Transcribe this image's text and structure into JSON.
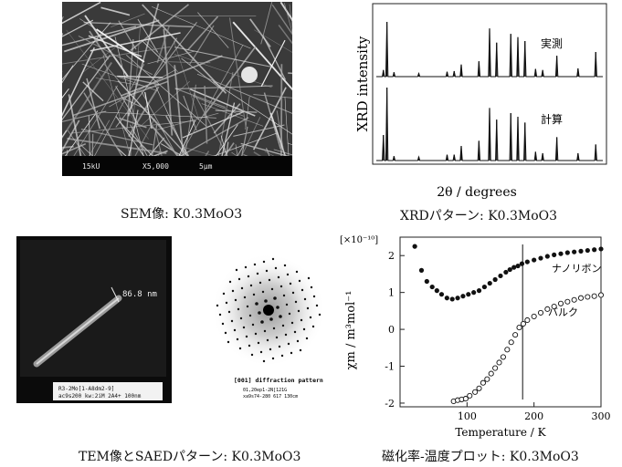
{
  "sem": {
    "bar_kv": "15kU",
    "bar_mag": "X5,000",
    "bar_scale": "5μm",
    "caption": "SEM像: K0.3MoO3"
  },
  "xrd": {
    "ylabel": "XRD intensity",
    "xlabel": "2θ / degrees",
    "label_measured": "実測",
    "label_calculated": "計算",
    "caption": "XRDパターン: K0.3MoO3"
  },
  "tem": {
    "width_label": "86.8 nm",
    "footer_line1": "R3-2Mo[1-A8dm2-9]",
    "footer_line2": "ac9s200 kw:2iM  2A4+ 100nm",
    "caption": "TEM像とSAEDパターン: K0.3MoO3"
  },
  "saed": {
    "title": "[001] diffraction pattern",
    "footer_line1": "01,20ep1-2N[121G",
    "footer_line2": "xa9s74-280 617 130cm"
  },
  "chi": {
    "unit_label": "[×10⁻¹⁰]",
    "ylabel": "χm / m³mol⁻¹",
    "xlabel": "Temperature / K",
    "label_nanoribbon": "ナノリボン",
    "label_bulk": "バルク",
    "caption": "磁化率-温度プロット: K0.3MoO3"
  },
  "chart_data": [
    {
      "type": "line",
      "title": "",
      "xlabel": "2θ / degrees",
      "ylabel": "XRD intensity",
      "axes_ticks": "none",
      "series": [
        {
          "name": "実測",
          "x": [
            10,
            11,
            13,
            20,
            28,
            30,
            32,
            37,
            40,
            42,
            46,
            48,
            50,
            53,
            55,
            59,
            65,
            70
          ],
          "values": [
            12,
            100,
            8,
            6,
            9,
            10,
            22,
            28,
            88,
            62,
            78,
            72,
            65,
            14,
            12,
            38,
            15,
            45
          ]
        },
        {
          "name": "計算",
          "x": [
            10,
            11,
            13,
            20,
            28,
            30,
            32,
            37,
            40,
            42,
            46,
            48,
            50,
            53,
            55,
            59,
            65,
            70
          ],
          "values": [
            35,
            100,
            6,
            5,
            8,
            8,
            20,
            27,
            72,
            56,
            65,
            60,
            52,
            12,
            10,
            32,
            10,
            22
          ]
        }
      ]
    },
    {
      "type": "scatter",
      "title": "",
      "xlabel": "Temperature / K",
      "ylabel": "χm / m³mol⁻¹",
      "xlim": [
        0,
        300
      ],
      "ylim": [
        -2.1,
        2.5
      ],
      "xticks": [
        100,
        200,
        300
      ],
      "yticks": [
        -2,
        -1,
        0,
        1,
        2
      ],
      "vline_x": 183,
      "series": [
        {
          "name": "ナノリボン",
          "marker": "filled",
          "x": [
            22,
            32,
            40,
            48,
            55,
            62,
            70,
            78,
            86,
            94,
            102,
            110,
            118,
            126,
            134,
            142,
            150,
            158,
            164,
            170,
            176,
            182,
            190,
            200,
            210,
            220,
            230,
            240,
            250,
            260,
            270,
            280,
            290,
            300
          ],
          "values": [
            2.25,
            1.6,
            1.3,
            1.15,
            1.05,
            0.95,
            0.85,
            0.82,
            0.85,
            0.9,
            0.95,
            1.0,
            1.05,
            1.15,
            1.25,
            1.35,
            1.45,
            1.55,
            1.62,
            1.68,
            1.72,
            1.78,
            1.83,
            1.88,
            1.93,
            1.98,
            2.02,
            2.05,
            2.08,
            2.1,
            2.12,
            2.14,
            2.16,
            2.18
          ]
        },
        {
          "name": "バルク",
          "marker": "open",
          "x": [
            80,
            86,
            92,
            98,
            104,
            112,
            118,
            124,
            130,
            136,
            142,
            148,
            154,
            160,
            166,
            172,
            178,
            184,
            190,
            200,
            210,
            220,
            230,
            240,
            250,
            260,
            270,
            280,
            290,
            300
          ],
          "values": [
            -1.95,
            -1.92,
            -1.9,
            -1.88,
            -1.8,
            -1.7,
            -1.6,
            -1.45,
            -1.35,
            -1.2,
            -1.05,
            -0.9,
            -0.75,
            -0.55,
            -0.35,
            -0.15,
            0.05,
            0.15,
            0.25,
            0.35,
            0.45,
            0.55,
            0.62,
            0.7,
            0.75,
            0.8,
            0.85,
            0.88,
            0.9,
            0.93
          ]
        }
      ]
    }
  ]
}
